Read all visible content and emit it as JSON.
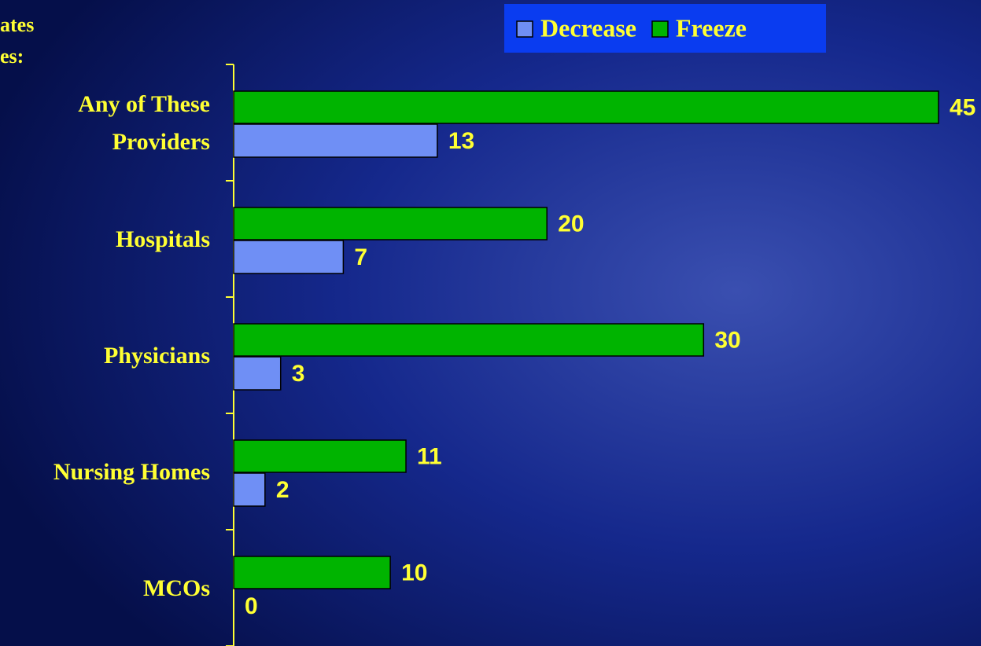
{
  "chart_data": {
    "type": "bar",
    "orientation": "horizontal",
    "title_lines": [
      "ates",
      "es:"
    ],
    "categories": [
      [
        "Any of These",
        "Providers"
      ],
      [
        "Hospitals"
      ],
      [
        "Physicians"
      ],
      [
        "Nursing Homes"
      ],
      [
        "MCOs"
      ]
    ],
    "series": [
      {
        "name": "Decrease",
        "color": "#6f8ff5",
        "values": [
          13,
          7,
          3,
          2,
          0
        ]
      },
      {
        "name": "Freeze",
        "color": "#00b400",
        "values": [
          45,
          20,
          30,
          11,
          10
        ]
      }
    ],
    "xlim": [
      0,
      45
    ],
    "legend": "top-right"
  }
}
